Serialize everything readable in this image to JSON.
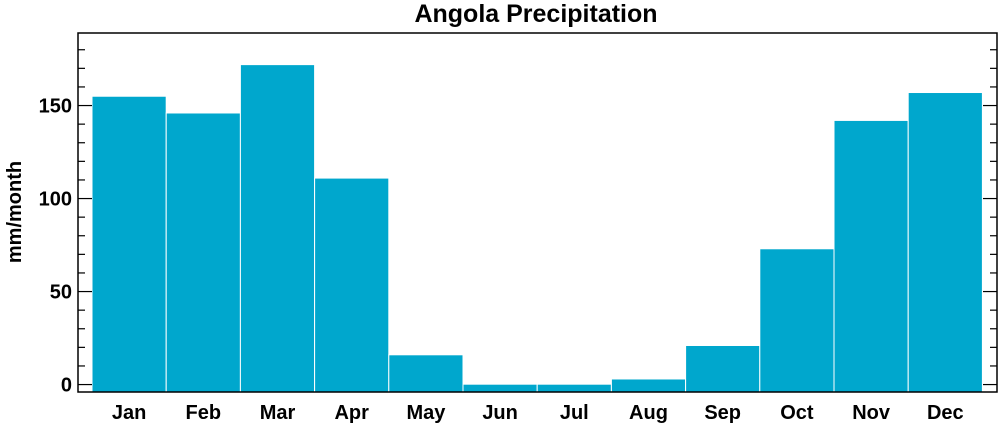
{
  "chart_data": {
    "type": "bar",
    "title": "Angola Precipitation",
    "xlabel": "",
    "ylabel": "mm/month",
    "categories": [
      "Jan",
      "Feb",
      "Mar",
      "Apr",
      "May",
      "Jun",
      "Jul",
      "Aug",
      "Sep",
      "Oct",
      "Nov",
      "Dec"
    ],
    "values": [
      155,
      146,
      172,
      111,
      16,
      0.2,
      0.2,
      3,
      21,
      73,
      142,
      157
    ],
    "ylim": [
      -4,
      189
    ],
    "yticks": [
      0,
      50,
      100,
      150
    ],
    "grid": false,
    "bar_color": "#00a7cd",
    "bar_edge_color": "#ffffff",
    "axis_color": "#000000"
  }
}
